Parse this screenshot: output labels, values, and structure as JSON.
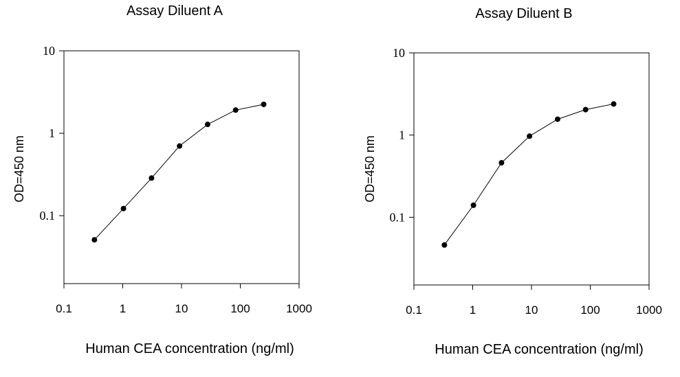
{
  "chart_data": [
    {
      "type": "line",
      "title": "Assay Diluent A",
      "xlabel": "Human CEA concentration (ng/ml)",
      "ylabel": "OD=450 nm",
      "xscale": "log",
      "yscale": "log",
      "xlim": [
        0.1,
        1000
      ],
      "ylim": [
        0.015,
        10
      ],
      "xticks": [
        {
          "value": 0.1,
          "label": "0.1"
        },
        {
          "value": 1,
          "label": "1"
        },
        {
          "value": 10,
          "label": "10"
        },
        {
          "value": 100,
          "label": "100"
        },
        {
          "value": 1000,
          "label": "1000"
        }
      ],
      "yticks": [
        {
          "value": 0.1,
          "label": "0.1"
        },
        {
          "value": 1,
          "label": "1"
        },
        {
          "value": 10,
          "label": "10"
        }
      ],
      "grid": false,
      "series": [
        {
          "x": [
            0.33,
            1.03,
            3.09,
            9.26,
            27.8,
            83.3,
            250
          ],
          "y": [
            0.051,
            0.122,
            0.286,
            0.7,
            1.28,
            1.91,
            2.24
          ]
        }
      ]
    },
    {
      "type": "line",
      "title": "Assay Diluent B",
      "xlabel": "Human CEA concentration (ng/ml)",
      "ylabel": "OD=450 nm",
      "xscale": "log",
      "yscale": "log",
      "xlim": [
        0.1,
        1000
      ],
      "ylim": [
        0.015,
        10
      ],
      "xticks": [
        {
          "value": 0.1,
          "label": "0.1"
        },
        {
          "value": 1,
          "label": "1"
        },
        {
          "value": 10,
          "label": "10"
        },
        {
          "value": 100,
          "label": "100"
        },
        {
          "value": 1000,
          "label": "1000"
        }
      ],
      "yticks": [
        {
          "value": 0.1,
          "label": "0.1"
        },
        {
          "value": 1,
          "label": "1"
        },
        {
          "value": 10,
          "label": "10"
        }
      ],
      "grid": false,
      "series": [
        {
          "x": [
            0.33,
            1.03,
            3.09,
            9.26,
            27.8,
            83.3,
            250
          ],
          "y": [
            0.046,
            0.14,
            0.46,
            0.97,
            1.56,
            2.04,
            2.39
          ]
        }
      ]
    }
  ]
}
